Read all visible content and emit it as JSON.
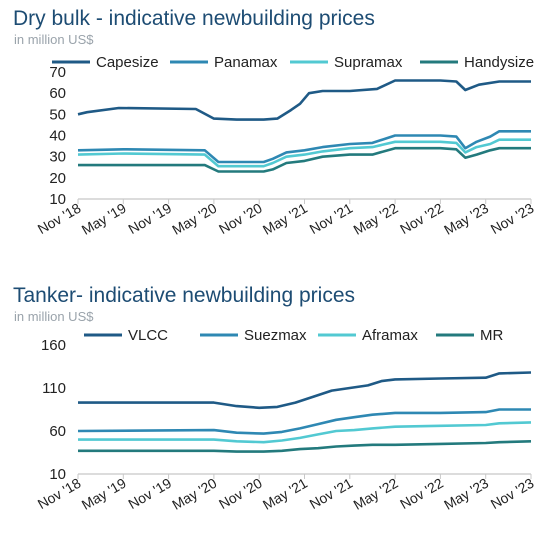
{
  "chart_data": [
    {
      "type": "line",
      "title": "Dry bulk - indicative newbuilding prices",
      "subtitle": "in million US$",
      "x_ticks": [
        "Nov '18",
        "May '19",
        "Nov '19",
        "May '20",
        "Nov '20",
        "May '21",
        "Nov '21",
        "May '22",
        "Nov '22",
        "May '23",
        "Nov '23"
      ],
      "ylim": [
        10,
        70
      ],
      "y_ticks": [
        10,
        20,
        30,
        40,
        50,
        60,
        70
      ],
      "grid": false,
      "legend_position": "top",
      "series": [
        {
          "name": "Capesize",
          "color": "#1f5a86",
          "points": [
            [
              0,
              50
            ],
            [
              0.2,
              51
            ],
            [
              0.9,
              53
            ],
            [
              2.6,
              52.5
            ],
            [
              3.0,
              48
            ],
            [
              3.5,
              47.5
            ],
            [
              4.1,
              47.5
            ],
            [
              4.4,
              48
            ],
            [
              4.7,
              52
            ],
            [
              4.9,
              55
            ],
            [
              5.1,
              60
            ],
            [
              5.4,
              61
            ],
            [
              6.0,
              61
            ],
            [
              6.6,
              62
            ],
            [
              7.0,
              66
            ],
            [
              8.0,
              66
            ],
            [
              8.35,
              65.5
            ],
            [
              8.55,
              61.5
            ],
            [
              8.85,
              64
            ],
            [
              9.3,
              65.5
            ],
            [
              10,
              65.5
            ]
          ]
        },
        {
          "name": "Panamax",
          "color": "#2e88b3",
          "points": [
            [
              0,
              33
            ],
            [
              1.0,
              33.5
            ],
            [
              2.8,
              33
            ],
            [
              3.1,
              27.5
            ],
            [
              4.1,
              27.5
            ],
            [
              4.3,
              29
            ],
            [
              4.6,
              32
            ],
            [
              5.0,
              33
            ],
            [
              5.4,
              34.5
            ],
            [
              6.0,
              36
            ],
            [
              6.5,
              36.5
            ],
            [
              7.0,
              40
            ],
            [
              8.0,
              40
            ],
            [
              8.35,
              39.5
            ],
            [
              8.55,
              34
            ],
            [
              8.8,
              37
            ],
            [
              9.1,
              39.5
            ],
            [
              9.3,
              42
            ],
            [
              10,
              42
            ]
          ]
        },
        {
          "name": "Supramax",
          "color": "#52c9d2",
          "points": [
            [
              0,
              31
            ],
            [
              1.0,
              31.5
            ],
            [
              2.8,
              31
            ],
            [
              3.1,
              25.5
            ],
            [
              4.1,
              25.5
            ],
            [
              4.3,
              27
            ],
            [
              4.6,
              30
            ],
            [
              5.0,
              31
            ],
            [
              5.4,
              32.5
            ],
            [
              6.0,
              34
            ],
            [
              6.5,
              34.5
            ],
            [
              7.0,
              37
            ],
            [
              8.0,
              37
            ],
            [
              8.35,
              36.5
            ],
            [
              8.55,
              32
            ],
            [
              8.8,
              34.5
            ],
            [
              9.1,
              36
            ],
            [
              9.3,
              38
            ],
            [
              10,
              38
            ]
          ]
        },
        {
          "name": "Handysize",
          "color": "#237a7d",
          "points": [
            [
              0,
              26
            ],
            [
              1.0,
              26
            ],
            [
              2.8,
              26
            ],
            [
              3.1,
              23
            ],
            [
              4.1,
              23
            ],
            [
              4.3,
              24
            ],
            [
              4.6,
              27
            ],
            [
              5.0,
              28
            ],
            [
              5.4,
              30
            ],
            [
              6.0,
              31
            ],
            [
              6.5,
              31
            ],
            [
              7.0,
              34
            ],
            [
              8.0,
              34
            ],
            [
              8.35,
              33.5
            ],
            [
              8.55,
              29.5
            ],
            [
              8.8,
              31
            ],
            [
              9.1,
              33
            ],
            [
              9.3,
              34
            ],
            [
              10,
              34
            ]
          ]
        }
      ]
    },
    {
      "type": "line",
      "title": "Tanker- indicative newbuilding prices",
      "subtitle": "in million US$",
      "x_ticks": [
        "Nov '18",
        "May '19",
        "Nov '19",
        "May '20",
        "Nov '20",
        "May '21",
        "Nov '21",
        "May '22",
        "Nov '22",
        "May '23",
        "Nov '23"
      ],
      "ylim": [
        10,
        160
      ],
      "y_ticks": [
        10,
        60,
        110,
        160
      ],
      "grid": false,
      "legend_position": "top",
      "series": [
        {
          "name": "VLCC",
          "color": "#1f5a86",
          "points": [
            [
              0,
              93
            ],
            [
              3.0,
              93
            ],
            [
              3.5,
              89
            ],
            [
              4.0,
              87
            ],
            [
              4.4,
              88
            ],
            [
              4.8,
              93
            ],
            [
              5.2,
              100
            ],
            [
              5.6,
              107
            ],
            [
              6.0,
              110
            ],
            [
              6.4,
              113
            ],
            [
              6.7,
              118
            ],
            [
              7.0,
              120
            ],
            [
              8.0,
              121
            ],
            [
              9.0,
              122
            ],
            [
              9.3,
              127
            ],
            [
              10,
              128
            ]
          ]
        },
        {
          "name": "Suezmax",
          "color": "#2e88b3",
          "points": [
            [
              0,
              60
            ],
            [
              3.0,
              61
            ],
            [
              3.5,
              58
            ],
            [
              4.1,
              57
            ],
            [
              4.5,
              59
            ],
            [
              4.9,
              63
            ],
            [
              5.3,
              68
            ],
            [
              5.7,
              73
            ],
            [
              6.1,
              76
            ],
            [
              6.5,
              79
            ],
            [
              7.0,
              81
            ],
            [
              8.0,
              81
            ],
            [
              9.0,
              82
            ],
            [
              9.3,
              85
            ],
            [
              10,
              85
            ]
          ]
        },
        {
          "name": "Aframax",
          "color": "#52c9d2",
          "points": [
            [
              0,
              50
            ],
            [
              3.0,
              50
            ],
            [
              3.5,
              48
            ],
            [
              4.1,
              47
            ],
            [
              4.5,
              49
            ],
            [
              4.9,
              52
            ],
            [
              5.3,
              56
            ],
            [
              5.7,
              60
            ],
            [
              6.1,
              61
            ],
            [
              6.5,
              63
            ],
            [
              7.0,
              65
            ],
            [
              8.0,
              66
            ],
            [
              9.0,
              67
            ],
            [
              9.3,
              69
            ],
            [
              10,
              70
            ]
          ]
        },
        {
          "name": "MR",
          "color": "#237a7d",
          "points": [
            [
              0,
              37
            ],
            [
              3.0,
              37
            ],
            [
              3.5,
              36
            ],
            [
              4.1,
              36
            ],
            [
              4.5,
              37
            ],
            [
              4.9,
              39
            ],
            [
              5.3,
              40
            ],
            [
              5.7,
              42
            ],
            [
              6.1,
              43
            ],
            [
              6.5,
              44
            ],
            [
              7.0,
              44
            ],
            [
              8.0,
              45
            ],
            [
              9.0,
              46
            ],
            [
              9.3,
              47
            ],
            [
              10,
              48
            ]
          ]
        }
      ]
    }
  ]
}
